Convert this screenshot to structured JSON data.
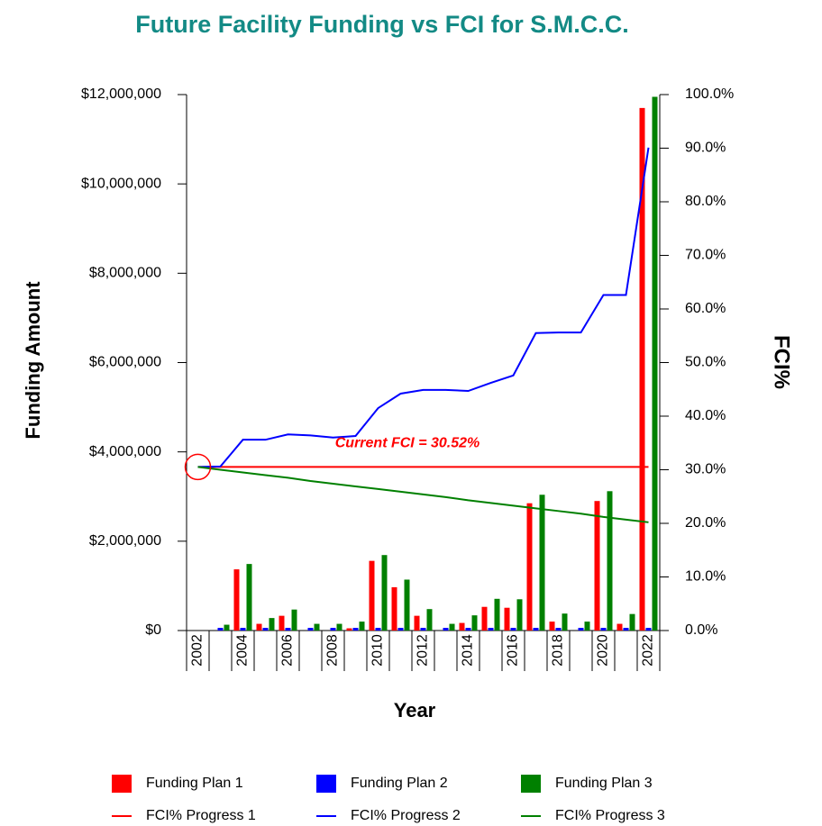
{
  "chart_data": {
    "type": "bar",
    "title": "Future Facility Funding vs FCI for S.M.C.C.",
    "x_label": "Year",
    "y_label": "Funding Amount",
    "y2_label": "FCI%",
    "annotation": "Current FCI = 30.52%",
    "categories": [
      "2002",
      null,
      "2004",
      null,
      "2006",
      null,
      "2008",
      null,
      "2010",
      null,
      "2012",
      null,
      "2014",
      null,
      "2016",
      null,
      "2018",
      null,
      "2020",
      null,
      "2022"
    ],
    "series": [
      {
        "name": "Funding Plan 1",
        "type": "bar",
        "color": "#ff0000",
        "values": [
          0,
          0,
          1370000,
          150000,
          330000,
          0,
          0,
          50000,
          1560000,
          970000,
          330000,
          0,
          170000,
          530000,
          510000,
          2850000,
          200000,
          0,
          2900000,
          150000,
          11700000
        ]
      },
      {
        "name": "Funding Plan 2",
        "type": "bar",
        "color": "#0000ff",
        "values": [
          0,
          60000,
          60000,
          60000,
          60000,
          60000,
          60000,
          60000,
          60000,
          60000,
          60000,
          60000,
          60000,
          60000,
          60000,
          60000,
          60000,
          60000,
          60000,
          60000,
          60000
        ]
      },
      {
        "name": "Funding Plan 3",
        "type": "bar",
        "color": "#008000",
        "values": [
          0,
          130000,
          1490000,
          280000,
          470000,
          150000,
          150000,
          200000,
          1690000,
          1140000,
          480000,
          150000,
          340000,
          710000,
          700000,
          3040000,
          380000,
          200000,
          3120000,
          370000,
          11950000
        ]
      },
      {
        "name": "FCI% Progress 1",
        "type": "line",
        "axis": "y2",
        "color": "#ff0000",
        "values": [
          30.52,
          30.52,
          30.52,
          30.52,
          30.52,
          30.52,
          30.52,
          30.52,
          30.52,
          30.52,
          30.52,
          30.52,
          30.52,
          30.52,
          30.52,
          30.52,
          30.52,
          30.52,
          30.52,
          30.52,
          30.52
        ]
      },
      {
        "name": "FCI% Progress 2",
        "type": "line",
        "axis": "y2",
        "color": "#0000ff",
        "values": [
          30.52,
          30.6,
          35.6,
          35.6,
          36.6,
          36.4,
          36.0,
          36.3,
          41.5,
          44.2,
          44.9,
          44.9,
          44.7,
          46.2,
          47.6,
          55.5,
          55.6,
          55.6,
          62.6,
          62.6,
          90.1
        ]
      },
      {
        "name": "FCI% Progress 3",
        "type": "line",
        "axis": "y2",
        "color": "#008000",
        "values": [
          30.52,
          30.0,
          29.5,
          29.0,
          28.5,
          27.9,
          27.4,
          26.9,
          26.4,
          25.9,
          25.4,
          24.9,
          24.3,
          23.8,
          23.3,
          22.8,
          22.3,
          21.8,
          21.2,
          20.7,
          20.2
        ]
      }
    ],
    "ylim": [
      0,
      12000000
    ],
    "yticks": [
      {
        "value": 0,
        "label": "$0"
      },
      {
        "value": 2000000,
        "label": "$2,000,000"
      },
      {
        "value": 4000000,
        "label": "$4,000,000"
      },
      {
        "value": 6000000,
        "label": "$6,000,000"
      },
      {
        "value": 8000000,
        "label": "$8,000,000"
      },
      {
        "value": 10000000,
        "label": "$10,000,000"
      },
      {
        "value": 12000000,
        "label": "$12,000,000"
      }
    ],
    "y2lim": [
      0,
      100
    ],
    "y2ticks": [
      {
        "value": 0,
        "label": "0.0%"
      },
      {
        "value": 10,
        "label": "10.0%"
      },
      {
        "value": 20,
        "label": "20.0%"
      },
      {
        "value": 30,
        "label": "30.0%"
      },
      {
        "value": 40,
        "label": "40.0%"
      },
      {
        "value": 50,
        "label": "50.0%"
      },
      {
        "value": 60,
        "label": "60.0%"
      },
      {
        "value": 70,
        "label": "70.0%"
      },
      {
        "value": 80,
        "label": "80.0%"
      },
      {
        "value": 90,
        "label": "90.0%"
      },
      {
        "value": 100,
        "label": "100.0%"
      }
    ],
    "grid": false,
    "legend": "bottom"
  }
}
